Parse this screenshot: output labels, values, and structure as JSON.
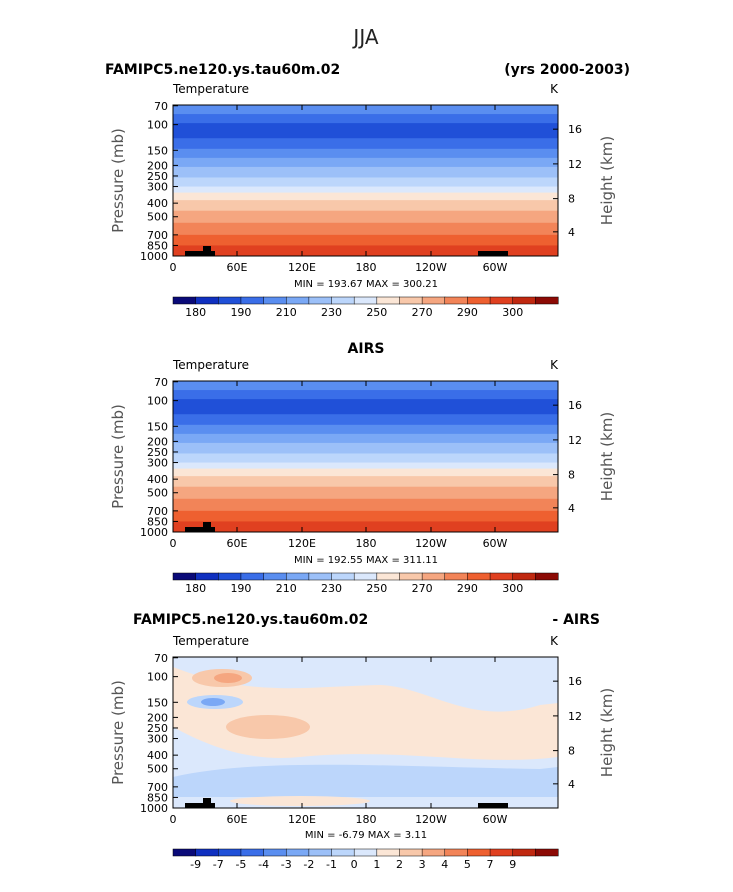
{
  "title": "JJA",
  "top_left_label": "FAMIPC5.ne120.ys.tau60m.02",
  "top_right_label": "(yrs 2000-2003)",
  "middle_label": "AIRS",
  "bottom_left_label": "FAMIPC5.ne120.ys.tau60m.02",
  "bottom_right_label": "- AIRS",
  "colors": {
    "temp_scale": [
      "#0a0a78",
      "#1030c0",
      "#2050d8",
      "#3a6ee8",
      "#5a8ef0",
      "#7aa8f5",
      "#9cc0f8",
      "#bcd6fb",
      "#dbe8fc",
      "#fbe6d6",
      "#f8c8aa",
      "#f5a680",
      "#f28458",
      "#ee6030",
      "#e04020",
      "#c02810",
      "#8c0a05"
    ],
    "diff_scale": [
      "#0a0a78",
      "#1030c0",
      "#2050d8",
      "#3a6ee8",
      "#5a8ef0",
      "#7aa8f5",
      "#9cc0f8",
      "#bcd6fb",
      "#dbe8fc",
      "#fbe6d6",
      "#f8c8aa",
      "#f5a680",
      "#f28458",
      "#ee6030",
      "#e04020",
      "#c02810",
      "#8c0a05"
    ]
  },
  "chart_data": [
    {
      "type": "heatmap",
      "variable": "Temperature",
      "units": "K",
      "subtitle": "FAMIPC5.ne120.ys.tau60m.02",
      "ylabel": "Pressure (mb)",
      "ylabel_right": "Height (km)",
      "x_ticks": [
        "0",
        "60E",
        "120E",
        "180",
        "120W",
        "60W"
      ],
      "y_ticks": [
        "70",
        "100",
        "150",
        "200",
        "250",
        "300",
        "400",
        "500",
        "700",
        "850",
        "1000"
      ],
      "y_right_ticks": [
        "16",
        "12",
        "8",
        "4"
      ],
      "stats_text": "MIN = 193.67   MAX = 300.21",
      "min": 193.67,
      "max": 300.21,
      "colorbar_labels": [
        "180",
        "190",
        "210",
        "230",
        "250",
        "270",
        "290",
        "300"
      ]
    },
    {
      "type": "heatmap",
      "variable": "Temperature",
      "units": "K",
      "subtitle": "AIRS",
      "ylabel": "Pressure (mb)",
      "ylabel_right": "Height (km)",
      "x_ticks": [
        "0",
        "60E",
        "120E",
        "180",
        "120W",
        "60W"
      ],
      "y_ticks": [
        "70",
        "100",
        "150",
        "200",
        "250",
        "300",
        "400",
        "500",
        "700",
        "850",
        "1000"
      ],
      "y_right_ticks": [
        "16",
        "12",
        "8",
        "4"
      ],
      "stats_text": "MIN = 192.55   MAX = 311.11",
      "min": 192.55,
      "max": 311.11,
      "colorbar_labels": [
        "180",
        "190",
        "210",
        "230",
        "250",
        "270",
        "290",
        "300"
      ]
    },
    {
      "type": "heatmap",
      "variable": "Temperature",
      "units": "K",
      "subtitle": "FAMIPC5.ne120.ys.tau60m.02 - AIRS",
      "ylabel": "Pressure (mb)",
      "ylabel_right": "Height (km)",
      "x_ticks": [
        "0",
        "60E",
        "120E",
        "180",
        "120W",
        "60W"
      ],
      "y_ticks": [
        "70",
        "100",
        "150",
        "200",
        "250",
        "300",
        "400",
        "500",
        "700",
        "850",
        "1000"
      ],
      "y_right_ticks": [
        "16",
        "12",
        "8",
        "4"
      ],
      "stats_text": "MIN =   -6.79   MAX =     3.11",
      "min": -6.79,
      "max": 3.11,
      "colorbar_labels": [
        "-9",
        "-7",
        "-5",
        "-4",
        "-3",
        "-2",
        "-1",
        "0",
        "1",
        "2",
        "3",
        "4",
        "5",
        "7",
        "9"
      ]
    }
  ]
}
